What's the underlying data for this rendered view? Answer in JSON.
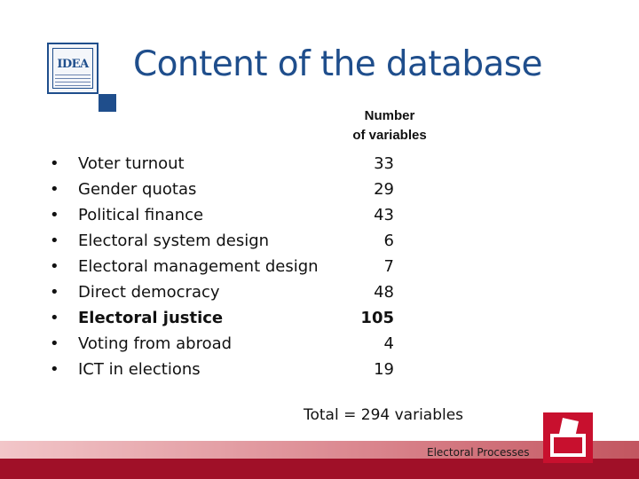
{
  "header": {
    "title": "Content of the database",
    "logo_text": "IDEA"
  },
  "column_header": {
    "line1": "Number",
    "line2": "of variables"
  },
  "bullet_symbol": "•",
  "items": [
    {
      "label": "Voter turnout",
      "count": "33",
      "bold": false
    },
    {
      "label": "Gender quotas",
      "count": "29",
      "bold": false
    },
    {
      "label": "Political finance",
      "count": "43",
      "bold": false
    },
    {
      "label": "Electoral system design",
      "count": "6",
      "bold": false
    },
    {
      "label": "Electoral management design",
      "count": "7",
      "bold": false
    },
    {
      "label": "Direct democracy",
      "count": "48",
      "bold": false
    },
    {
      "label": "Electoral justice",
      "count": "105",
      "bold": true
    },
    {
      "label": "Voting from abroad",
      "count": "4",
      "bold": false
    },
    {
      "label": "ICT in elections",
      "count": "19",
      "bold": false
    }
  ],
  "total": "Total = 294 variables",
  "footer": {
    "label": "Electoral Processes",
    "accent_color": "#a01028",
    "icon": "ballot-box-icon"
  },
  "colors": {
    "brand_blue": "#1f4e8c"
  }
}
